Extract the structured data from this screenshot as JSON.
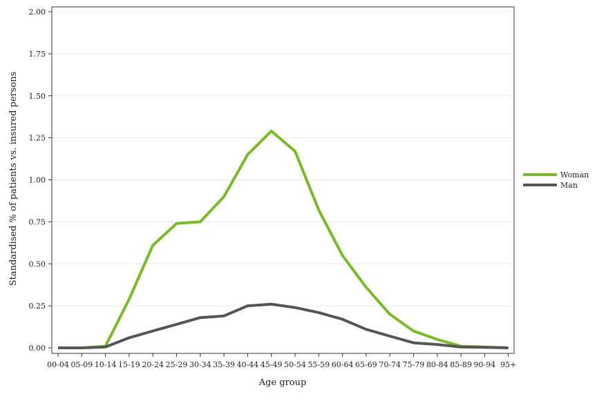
{
  "chart_data": {
    "type": "line",
    "title": "",
    "xlabel": "Age group",
    "ylabel": "Standardised % of patients vs. insured persons",
    "categories": [
      "00-04",
      "05-09",
      "10-14",
      "15-19",
      "20-24",
      "25-29",
      "30-34",
      "35-39",
      "40-44",
      "45-49",
      "50-54",
      "55-59",
      "60-64",
      "65-69",
      "70-74",
      "75-79",
      "80-84",
      "85-89",
      "90-94",
      "95+"
    ],
    "yticks": [
      "0.00",
      "0.25",
      "0.50",
      "0.75",
      "1.00",
      "1.25",
      "1.50",
      "1.75",
      "2.00"
    ],
    "ylim": [
      0,
      2
    ],
    "grid": true,
    "legend_position": "right",
    "series": [
      {
        "name": "Woman",
        "color": "#7aba2a",
        "values": [
          0.0,
          0.0,
          0.01,
          0.29,
          0.61,
          0.74,
          0.75,
          0.9,
          1.15,
          1.29,
          1.17,
          0.82,
          0.55,
          0.36,
          0.2,
          0.1,
          0.05,
          0.01,
          0.005,
          0.0
        ]
      },
      {
        "name": "Man",
        "color": "#555555",
        "values": [
          0.0,
          0.0,
          0.005,
          0.06,
          0.1,
          0.14,
          0.18,
          0.19,
          0.25,
          0.26,
          0.24,
          0.21,
          0.17,
          0.11,
          0.07,
          0.03,
          0.02,
          0.005,
          0.003,
          0.0
        ]
      }
    ]
  }
}
